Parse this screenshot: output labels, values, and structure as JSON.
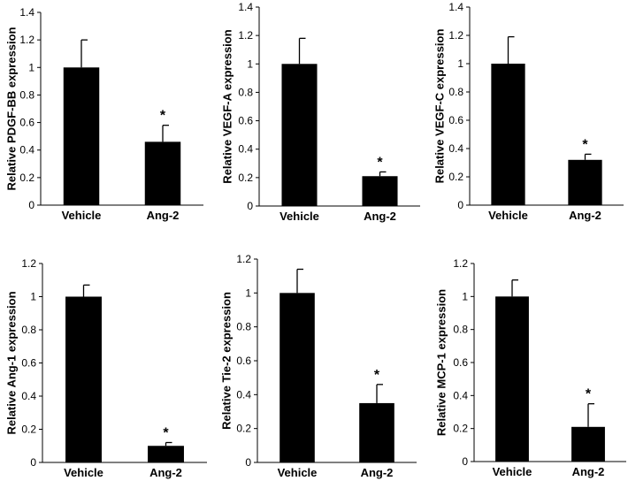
{
  "chart_data": [
    {
      "type": "bar",
      "ylabel": "Relative PDGF-BB expression",
      "categories": [
        "Vehicle",
        "Ang-2"
      ],
      "values": [
        1.0,
        0.46
      ],
      "errors": [
        0.2,
        0.12
      ],
      "significance": [
        "",
        "*"
      ],
      "ylim": [
        0,
        1.4
      ],
      "yticks": [
        0,
        0.2,
        0.4,
        0.6,
        0.8,
        1,
        1.2,
        1.4
      ],
      "ytick_labels": [
        "0",
        "0.2",
        "0.4",
        "0.6",
        "0.8",
        "1",
        "1.2",
        "1.4"
      ]
    },
    {
      "type": "bar",
      "ylabel": "Relative VEGF-A expression",
      "categories": [
        "Vehicle",
        "Ang-2"
      ],
      "values": [
        1.0,
        0.21
      ],
      "errors": [
        0.18,
        0.03
      ],
      "significance": [
        "",
        "*"
      ],
      "ylim": [
        0,
        1.4
      ],
      "yticks": [
        0,
        0.2,
        0.4,
        0.6,
        0.8,
        1,
        1.2,
        1.4
      ],
      "ytick_labels": [
        "0",
        "0.2",
        "0.4",
        "0.6",
        "0.8",
        "1",
        "1.2",
        "1.4"
      ]
    },
    {
      "type": "bar",
      "ylabel": "Relative VEGF-C expression",
      "categories": [
        "Vehicle",
        "Ang-2"
      ],
      "values": [
        1.0,
        0.32
      ],
      "errors": [
        0.19,
        0.04
      ],
      "significance": [
        "",
        "*"
      ],
      "ylim": [
        0,
        1.4
      ],
      "yticks": [
        0,
        0.2,
        0.4,
        0.6,
        0.8,
        1,
        1.2,
        1.4
      ],
      "ytick_labels": [
        "0",
        "0.2",
        "0.4",
        "0.6",
        "0.8",
        "1",
        "1.2",
        "1.4"
      ]
    },
    {
      "type": "bar",
      "ylabel": "Relative Ang-1 expression",
      "categories": [
        "Vehicle",
        "Ang-2"
      ],
      "values": [
        1.0,
        0.1
      ],
      "errors": [
        0.07,
        0.02
      ],
      "significance": [
        "",
        "*"
      ],
      "ylim": [
        0,
        1.2
      ],
      "yticks": [
        0,
        0.2,
        0.4,
        0.6,
        0.8,
        1,
        1.2
      ],
      "ytick_labels": [
        "0",
        "0.2",
        "0.4",
        "0.6",
        "0.8",
        "1",
        "1.2"
      ]
    },
    {
      "type": "bar",
      "ylabel": "Relative Tie-2 expression",
      "categories": [
        "Vehicle",
        "Ang-2"
      ],
      "values": [
        1.0,
        0.35
      ],
      "errors": [
        0.14,
        0.11
      ],
      "significance": [
        "",
        "*"
      ],
      "ylim": [
        0,
        1.2
      ],
      "yticks": [
        0,
        0.2,
        0.4,
        0.6,
        0.8,
        1,
        1.2
      ],
      "ytick_labels": [
        "0",
        "0.2",
        "0.4",
        "0.6",
        "0.8",
        "1",
        "1.2"
      ]
    },
    {
      "type": "bar",
      "ylabel": "Relative MCP-1 expression",
      "categories": [
        "Vehicle",
        "Ang-2"
      ],
      "values": [
        1.0,
        0.21
      ],
      "errors": [
        0.1,
        0.14
      ],
      "significance": [
        "",
        "*"
      ],
      "ylim": [
        0,
        1.2
      ],
      "yticks": [
        0,
        0.2,
        0.4,
        0.6,
        0.8,
        1,
        1.2
      ],
      "ytick_labels": [
        "0",
        "0.2",
        "0.4",
        "0.6",
        "0.8",
        "1",
        "1.2"
      ]
    }
  ]
}
